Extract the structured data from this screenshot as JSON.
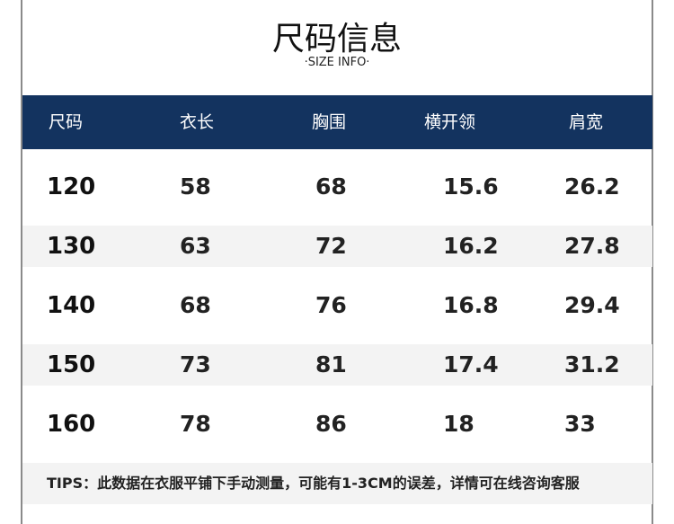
{
  "title": "尺码信息",
  "subtitle": "·SIZE INFO·",
  "table": {
    "headers": [
      "尺码",
      "衣长",
      "胸围",
      "横开领",
      "肩宽"
    ],
    "rows": [
      [
        "120",
        "58",
        "68",
        "15.6",
        "26.2"
      ],
      [
        "130",
        "63",
        "72",
        "16.2",
        "27.8"
      ],
      [
        "140",
        "68",
        "76",
        "16.8",
        "29.4"
      ],
      [
        "150",
        "73",
        "81",
        "17.4",
        "31.2"
      ],
      [
        "160",
        "78",
        "86",
        "18",
        "33"
      ]
    ]
  },
  "tips": "TIPS：此数据在衣服平铺下手动测量，可能有1-3CM的误差，详情可在线咨询客服",
  "colors": {
    "header_bg": "#13335f",
    "stripe": "#f3f3f3"
  }
}
